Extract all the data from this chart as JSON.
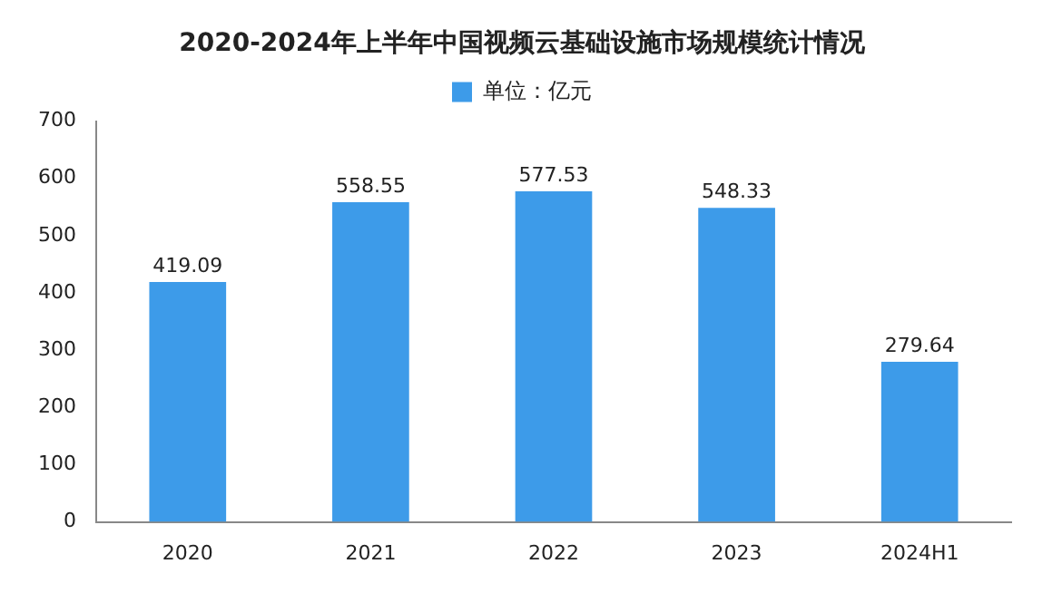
{
  "chart_data": {
    "type": "bar",
    "title": "2020-2024年上半年中国视频云基础设施市场规模统计情况",
    "categories": [
      "2020",
      "2021",
      "2022",
      "2023",
      "2024H1"
    ],
    "series": [
      {
        "name": "单位：亿元",
        "color": "#3d9be9",
        "values": [
          419.09,
          558.55,
          577.53,
          548.33,
          279.64
        ]
      }
    ],
    "ylim": [
      0,
      700
    ],
    "yticks": [
      0,
      100,
      200,
      300,
      400,
      500,
      600,
      700
    ],
    "grid": false,
    "legend": "top",
    "data_labels": true
  }
}
